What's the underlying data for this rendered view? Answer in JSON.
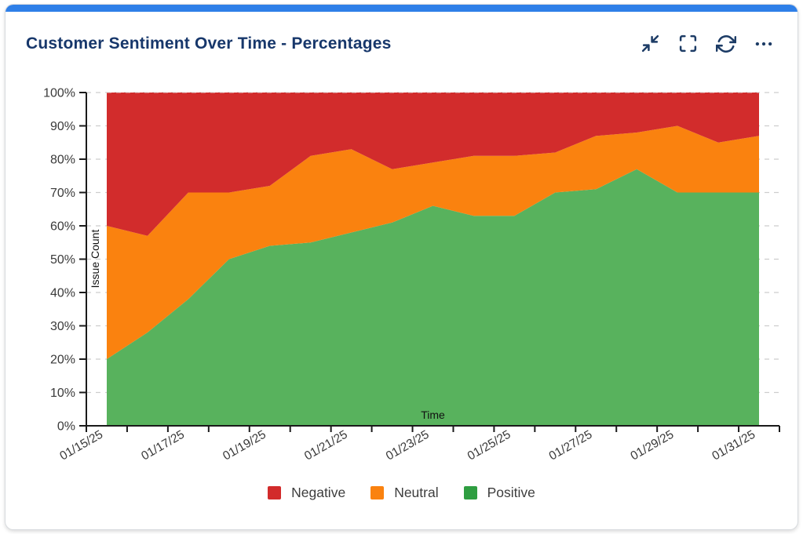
{
  "card": {
    "title": "Customer Sentiment Over Time - Percentages",
    "accent_color": "#2e7fe8",
    "icon_color": "#1d3c66",
    "toolbar": {
      "icons": [
        {
          "name": "collapse"
        },
        {
          "name": "fullscreen"
        },
        {
          "name": "refresh"
        },
        {
          "name": "more-options"
        }
      ]
    }
  },
  "legend": {
    "items": [
      {
        "label": "Negative",
        "color": "#d22b2b"
      },
      {
        "label": "Neutral",
        "color": "#fa820f"
      },
      {
        "label": "Positive",
        "color": "#2f9e41"
      }
    ]
  },
  "chart_data": {
    "type": "area",
    "stacked": true,
    "normalized_percent": true,
    "title": "Customer Sentiment Over Time - Percentages",
    "xlabel": "Time",
    "ylabel": "Issue Count",
    "categories": [
      "01/15/25",
      "01/16/25",
      "01/17/25",
      "01/18/25",
      "01/19/25",
      "01/20/25",
      "01/21/25",
      "01/22/25",
      "01/23/25",
      "01/24/25",
      "01/25/25",
      "01/26/25",
      "01/27/25",
      "01/28/25",
      "01/29/25",
      "01/30/25",
      "01/31/25"
    ],
    "series": [
      {
        "name": "Positive",
        "color": "#58b25d",
        "values": [
          20,
          28,
          38,
          50,
          54,
          55,
          58,
          61,
          66,
          63,
          63,
          70,
          71,
          77,
          70,
          70,
          70
        ]
      },
      {
        "name": "Neutral",
        "color": "#fa820f",
        "values": [
          40,
          29,
          32,
          20,
          18,
          26,
          25,
          16,
          13,
          18,
          18,
          12,
          16,
          11,
          20,
          15,
          17
        ]
      },
      {
        "name": "Negative",
        "color": "#d22c2c",
        "values": [
          40,
          43,
          30,
          30,
          28,
          19,
          17,
          23,
          21,
          19,
          19,
          18,
          13,
          12,
          10,
          15,
          13
        ]
      }
    ],
    "ylim": [
      0,
      100
    ],
    "yticks": [
      "0%",
      "10%",
      "20%",
      "30%",
      "40%",
      "50%",
      "60%",
      "70%",
      "80%",
      "90%",
      "100%"
    ],
    "xtick_labels": [
      "01/15/25",
      "01/17/25",
      "01/19/25",
      "01/21/25",
      "01/23/25",
      "01/25/25",
      "01/27/25",
      "01/29/25",
      "01/31/25"
    ],
    "grid": "horizontal-dashed",
    "grid_color": "#cdcdcd",
    "axis_color": "#1a1a1a",
    "tick_label_color": "#3a3a3a",
    "legend_position": "bottom-center"
  }
}
